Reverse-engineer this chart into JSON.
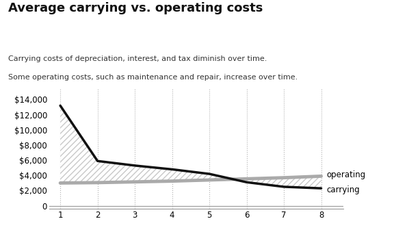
{
  "title": "Average carrying vs. operating costs",
  "subtitle_line1": "Carrying costs of depreciation, interest, and tax diminish over time.",
  "subtitle_line2": "Some operating costs, such as maintenance and repair, increase over time.",
  "x": [
    1,
    2,
    3,
    4,
    5,
    6,
    7,
    8
  ],
  "carrying": [
    13200,
    5900,
    5300,
    4800,
    4200,
    3100,
    2500,
    2300
  ],
  "operating": [
    3000,
    3050,
    3150,
    3250,
    3400,
    3550,
    3700,
    3900
  ],
  "ylabel_ticks": [
    0,
    2000,
    4000,
    6000,
    8000,
    10000,
    12000,
    14000
  ],
  "carrying_line_color": "#111111",
  "operating_line_color": "#aaaaaa",
  "background_color": "#ffffff",
  "label_operating": "operating",
  "label_carrying": "carrying",
  "title_fontsize": 13,
  "subtitle_fontsize": 8,
  "axis_fontsize": 8.5
}
